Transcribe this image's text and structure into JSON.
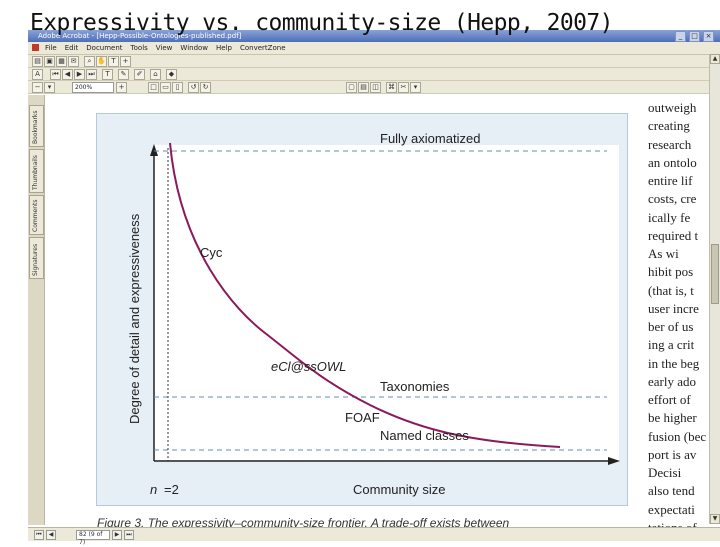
{
  "slide_title": "Expressivity vs. community-size (Hepp, 2007)",
  "window": {
    "title": "Adobe Acrobat - [Hepp-Possible-Ontologies-published.pdf]",
    "minimize": "_",
    "maximize": "□",
    "close": "×"
  },
  "menu": [
    "File",
    "Edit",
    "Document",
    "Tools",
    "View",
    "Window",
    "Help",
    "ConvertZone"
  ],
  "toolbar": {
    "zoom_value": "200%"
  },
  "nav_tabs": [
    "Bookmarks",
    "Thumbnails",
    "Comments",
    "Signatures"
  ],
  "status": {
    "page_field": "82 (9 of 7)"
  },
  "chart_data": {
    "type": "line",
    "xlabel": "Community size",
    "ylabel": "Degree of detail and expressiveness",
    "x_marker_label": "n",
    "x_marker_value": "=2",
    "levels": [
      "Fully axiomatized",
      "Taxonomies",
      "Named classes"
    ],
    "curve_labels": [
      "Cyc",
      "eCl@ss OWL",
      "FOAF"
    ],
    "curve_label_cyc": "Cyc",
    "curve_label_eclass": "eCl@ssOWL",
    "curve_label_foaf": "FOAF"
  },
  "caption": "Figure 3. The expressivity–community-size frontier. A trade-off exists between",
  "right_text_lines": [
    "outweigh",
    "creating",
    "research",
    "an ontolo",
    "entire lif",
    "costs, cre",
    "ically fe",
    "required t",
    "As wi",
    "hibit pos",
    "(that is, t",
    "user incre",
    "ber of us",
    "ing a crit",
    "in the beg",
    "early ado",
    "effort of",
    "be higher",
    "fusion (bec",
    "port is av",
    "Decisi",
    "also tend",
    "expectati",
    "tations of"
  ]
}
